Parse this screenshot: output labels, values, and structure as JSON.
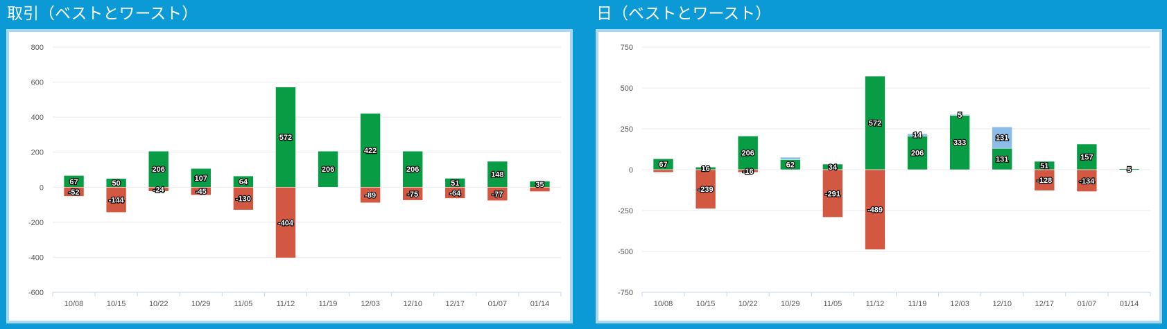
{
  "colors": {
    "background": "#0b9ad6",
    "positive": "#089c45",
    "negative": "#d25841",
    "extra": "#8bbde8"
  },
  "panels": [
    {
      "title": "取引（ベストとワースト）"
    },
    {
      "title": "日（ベストとワースト）"
    }
  ],
  "chart_data": [
    {
      "type": "bar",
      "stacked": true,
      "categories": [
        "10/08",
        "10/15",
        "10/22",
        "10/29",
        "11/05",
        "11/12",
        "11/19",
        "12/03",
        "12/10",
        "12/17",
        "01/07",
        "01/14"
      ],
      "series": [
        {
          "color": "#089c45",
          "values": [
            67,
            50,
            206,
            107,
            64,
            572,
            206,
            422,
            206,
            51,
            148,
            35
          ]
        },
        {
          "color": "#d25841",
          "values": [
            -52,
            -144,
            -24,
            -45,
            -130,
            -404,
            0,
            -89,
            -75,
            -64,
            -77,
            -25
          ]
        }
      ],
      "data_labels": [
        [
          "67",
          "50",
          "206",
          "107",
          "64",
          "572",
          "206",
          "422",
          "206",
          "51",
          "148",
          "35"
        ],
        [
          "-52",
          "-144",
          "-24",
          "-45",
          "-130",
          "-404",
          "",
          "-89",
          "-75",
          "-64",
          "-77",
          ""
        ]
      ],
      "ylim": [
        -600,
        800
      ],
      "yticks": [
        800,
        600,
        400,
        200,
        0,
        -200,
        -400,
        -600
      ],
      "grid": true,
      "xlabel": "",
      "ylabel": ""
    },
    {
      "type": "bar",
      "stacked": true,
      "categories": [
        "10/08",
        "10/15",
        "10/22",
        "10/29",
        "11/05",
        "11/12",
        "11/19",
        "12/03",
        "12/10",
        "12/17",
        "01/07",
        "01/14"
      ],
      "series": [
        {
          "color": "#089c45",
          "values": [
            67,
            16,
            206,
            62,
            34,
            572,
            206,
            333,
            131,
            51,
            157,
            5
          ]
        },
        {
          "color": "#8bbde8",
          "values": [
            0,
            0,
            0,
            14,
            0,
            0,
            14,
            5,
            131,
            0,
            0,
            0
          ]
        },
        {
          "color": "#d25841",
          "values": [
            -16,
            -239,
            -16,
            0,
            -291,
            -489,
            0,
            0,
            0,
            -128,
            -134,
            0
          ]
        }
      ],
      "data_labels": [
        [
          "67",
          "16",
          "206",
          "62",
          "34",
          "572",
          "206",
          "333",
          "131",
          "51",
          "157",
          "5"
        ],
        [
          "",
          "",
          "",
          "",
          "",
          "",
          "14",
          "5",
          "131",
          "",
          "",
          ""
        ],
        [
          "",
          "-239",
          "-16",
          "",
          "-291",
          "-489",
          "",
          "",
          "",
          "-128",
          "-134",
          ""
        ]
      ],
      "ylim": [
        -750,
        750
      ],
      "yticks": [
        750,
        500,
        250,
        0,
        -250,
        -500,
        -750
      ],
      "grid": true,
      "xlabel": "",
      "ylabel": ""
    }
  ]
}
